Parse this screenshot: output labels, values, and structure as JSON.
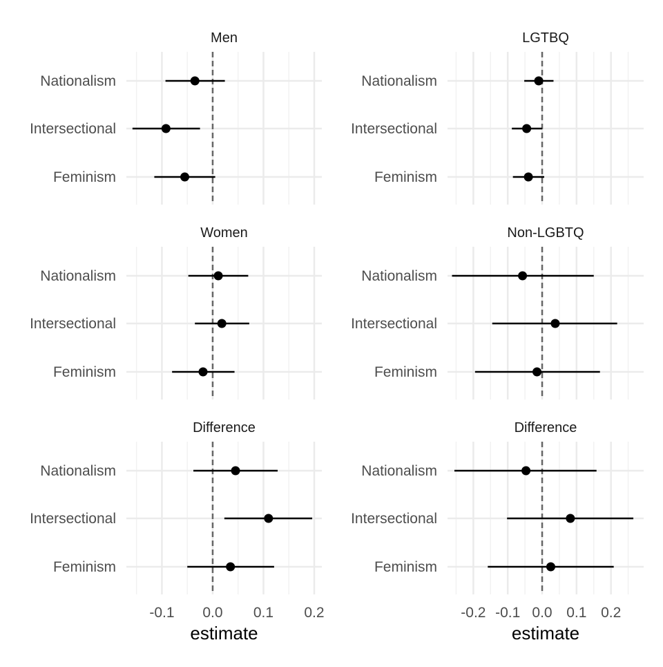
{
  "chart_data": [
    {
      "type": "scatter",
      "subtype": "coefficient-plot",
      "title": "Men",
      "categories": [
        "Nationalism",
        "Intersectional",
        "Feminism"
      ],
      "estimates": [
        -0.035,
        -0.092,
        -0.055
      ],
      "ci_low": [
        -0.093,
        -0.158,
        -0.115
      ],
      "ci_high": [
        0.024,
        -0.025,
        0.005
      ],
      "xlim": [
        -0.17,
        0.215
      ],
      "xticks": [
        -0.1,
        0.0,
        0.1,
        0.2
      ],
      "xlabel": "",
      "reference_line": 0,
      "grid": true
    },
    {
      "type": "scatter",
      "subtype": "coefficient-plot",
      "title": "LGTBQ",
      "categories": [
        "Nationalism",
        "Intersectional",
        "Feminism"
      ],
      "estimates": [
        -0.01,
        -0.045,
        -0.04
      ],
      "ci_low": [
        -0.052,
        -0.088,
        -0.085
      ],
      "ci_high": [
        0.033,
        0.0,
        0.006
      ],
      "xlim": [
        -0.275,
        0.295
      ],
      "xticks": [
        -0.2,
        -0.1,
        0.0,
        0.1,
        0.2
      ],
      "xlabel": "",
      "reference_line": 0,
      "grid": true
    },
    {
      "type": "scatter",
      "subtype": "coefficient-plot",
      "title": "Women",
      "categories": [
        "Nationalism",
        "Intersectional",
        "Feminism"
      ],
      "estimates": [
        0.011,
        0.018,
        -0.019
      ],
      "ci_low": [
        -0.048,
        -0.035,
        -0.08
      ],
      "ci_high": [
        0.07,
        0.072,
        0.043
      ],
      "xlim": [
        -0.17,
        0.215
      ],
      "xticks": [
        -0.1,
        0.0,
        0.1,
        0.2
      ],
      "xlabel": "",
      "reference_line": 0,
      "grid": true
    },
    {
      "type": "scatter",
      "subtype": "coefficient-plot",
      "title": "Non-LGBTQ",
      "categories": [
        "Nationalism",
        "Intersectional",
        "Feminism"
      ],
      "estimates": [
        -0.057,
        0.038,
        -0.015
      ],
      "ci_low": [
        -0.262,
        -0.145,
        -0.195
      ],
      "ci_high": [
        0.15,
        0.218,
        0.168
      ],
      "xlim": [
        -0.275,
        0.295
      ],
      "xticks": [
        -0.2,
        -0.1,
        0.0,
        0.1,
        0.2
      ],
      "xlabel": "",
      "reference_line": 0,
      "grid": true
    },
    {
      "type": "scatter",
      "subtype": "coefficient-plot",
      "title": "Difference",
      "categories": [
        "Nationalism",
        "Intersectional",
        "Feminism"
      ],
      "estimates": [
        0.045,
        0.11,
        0.035
      ],
      "ci_low": [
        -0.038,
        0.023,
        -0.05
      ],
      "ci_high": [
        0.128,
        0.196,
        0.121
      ],
      "xlim": [
        -0.17,
        0.215
      ],
      "xticks": [
        -0.1,
        0.0,
        0.1,
        0.2
      ],
      "xlabel": "estimate",
      "reference_line": 0,
      "grid": true
    },
    {
      "type": "scatter",
      "subtype": "coefficient-plot",
      "title": "Difference",
      "categories": [
        "Nationalism",
        "Intersectional",
        "Feminism"
      ],
      "estimates": [
        -0.047,
        0.082,
        0.025
      ],
      "ci_low": [
        -0.255,
        -0.102,
        -0.158
      ],
      "ci_high": [
        0.158,
        0.265,
        0.208
      ],
      "xlim": [
        -0.275,
        0.295
      ],
      "xticks": [
        -0.2,
        -0.1,
        0.0,
        0.1,
        0.2
      ],
      "xlabel": "estimate",
      "reference_line": 0,
      "grid": true
    }
  ],
  "colors": {
    "point": "#000000",
    "interval": "#000000",
    "reference_line": "#666666",
    "grid_major": "#ebebeb",
    "grid_minor": "#f2f2f2",
    "text": "#4d4d4d"
  }
}
